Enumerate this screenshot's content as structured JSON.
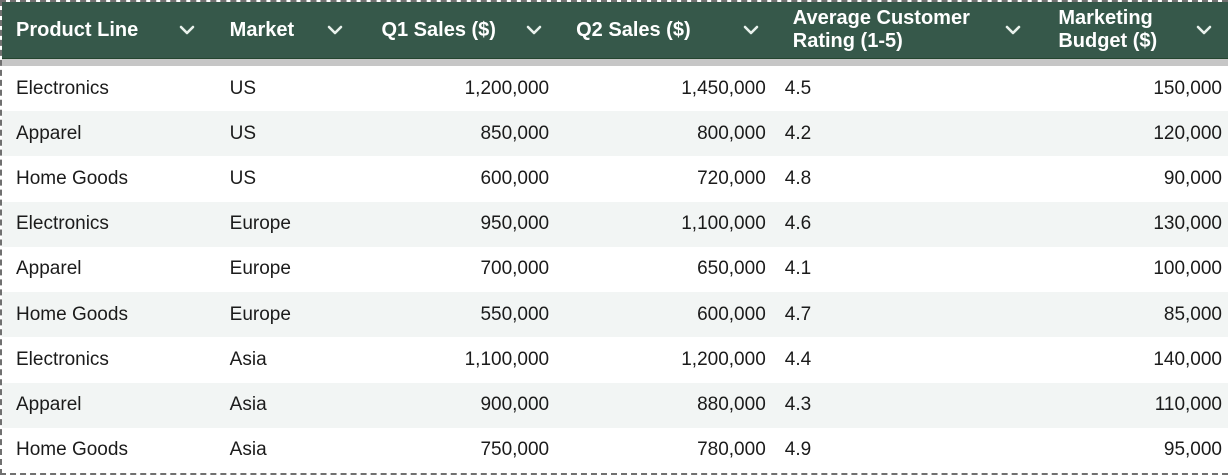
{
  "table": {
    "columns": [
      {
        "key": "product-line",
        "label": "Product Line"
      },
      {
        "key": "market",
        "label": "Market"
      },
      {
        "key": "q1-sales",
        "label": "Q1 Sales ($)"
      },
      {
        "key": "q2-sales",
        "label": "Q2 Sales ($)"
      },
      {
        "key": "avg-rating",
        "label": "Average Customer Rating (1-5)"
      },
      {
        "key": "marketing-budget",
        "label": "Marketing Budget ($)"
      }
    ],
    "rows": [
      [
        "Electronics",
        "US",
        "1,200,000",
        "1,450,000",
        "4.5",
        "150,000"
      ],
      [
        "Apparel",
        "US",
        "850,000",
        "800,000",
        "4.2",
        "120,000"
      ],
      [
        "Home Goods",
        "US",
        "600,000",
        "720,000",
        "4.8",
        "90,000"
      ],
      [
        "Electronics",
        "Europe",
        "950,000",
        "1,100,000",
        "4.6",
        "130,000"
      ],
      [
        "Apparel",
        "Europe",
        "700,000",
        "650,000",
        "4.1",
        "100,000"
      ],
      [
        "Home Goods",
        "Europe",
        "550,000",
        "600,000",
        "4.7",
        "85,000"
      ],
      [
        "Electronics",
        "Asia",
        "1,100,000",
        "1,200,000",
        "4.4",
        "140,000"
      ],
      [
        "Apparel",
        "Asia",
        "900,000",
        "880,000",
        "4.3",
        "110,000"
      ],
      [
        "Home Goods",
        "Asia",
        "750,000",
        "780,000",
        "4.9",
        "95,000"
      ]
    ]
  },
  "colors": {
    "header_bg": "#36584a",
    "header_text": "#ffffff",
    "row_alt_bg": "#f2f5f4",
    "divider": "#c6c6c6",
    "marquee": "#707070"
  },
  "icons": {
    "header_dropdown": "chevron-down-icon"
  }
}
